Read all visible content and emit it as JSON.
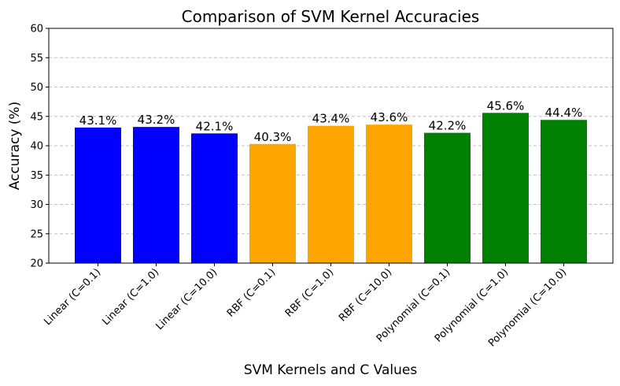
{
  "chart_data": {
    "type": "bar",
    "title": "Comparison of SVM Kernel Accuracies",
    "xlabel": "SVM Kernels and C Values",
    "ylabel": "Accuracy (%)",
    "ylim": [
      20,
      60
    ],
    "yticks": [
      "20",
      "25",
      "30",
      "35",
      "40",
      "45",
      "50",
      "55",
      "60"
    ],
    "grid": "y-dashed",
    "categories": [
      "Linear (C=0.1)",
      "Linear (C=1.0)",
      "Linear (C=10.0)",
      "RBF (C=0.1)",
      "RBF (C=1.0)",
      "RBF (C=10.0)",
      "Polynomial (C=0.1)",
      "Polynomial (C=1.0)",
      "Polynomial (C=10.0)"
    ],
    "values": [
      43.1,
      43.2,
      42.1,
      40.3,
      43.4,
      43.6,
      42.2,
      45.6,
      44.4
    ],
    "value_labels": [
      "43.1%",
      "43.2%",
      "42.1%",
      "40.3%",
      "43.4%",
      "43.6%",
      "42.2%",
      "45.6%",
      "44.4%"
    ],
    "colors": [
      "#0000ff",
      "#0000ff",
      "#0000ff",
      "#ffa500",
      "#ffa500",
      "#ffa500",
      "#008000",
      "#008000",
      "#008000"
    ]
  }
}
